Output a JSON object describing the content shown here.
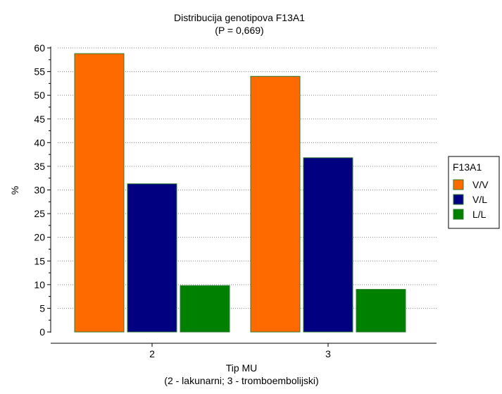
{
  "chart_data": {
    "type": "bar",
    "title": "Distribucija genotipova F13A1",
    "subtitle": "(P = 0,669)",
    "xlabel": "Tip MU",
    "xlabel_note": "(2 - lakunarni; 3 - tromboembolijski)",
    "ylabel": "%",
    "categories": [
      "2",
      "3"
    ],
    "series": [
      {
        "name": "V/V",
        "values": [
          58.8,
          54.0
        ],
        "color": "#FF6A00"
      },
      {
        "name": "V/L",
        "values": [
          31.3,
          36.8
        ],
        "color": "#000080"
      },
      {
        "name": "L/L",
        "values": [
          9.8,
          9.0
        ],
        "color": "#008000"
      }
    ],
    "ylim": [
      0,
      60
    ],
    "yticks": [
      0,
      5,
      10,
      15,
      20,
      25,
      30,
      35,
      40,
      45,
      50,
      55,
      60
    ],
    "grid": true,
    "legend": {
      "title": "F13A1",
      "placement": "right"
    },
    "bar_border_color": "#2E7D32"
  }
}
